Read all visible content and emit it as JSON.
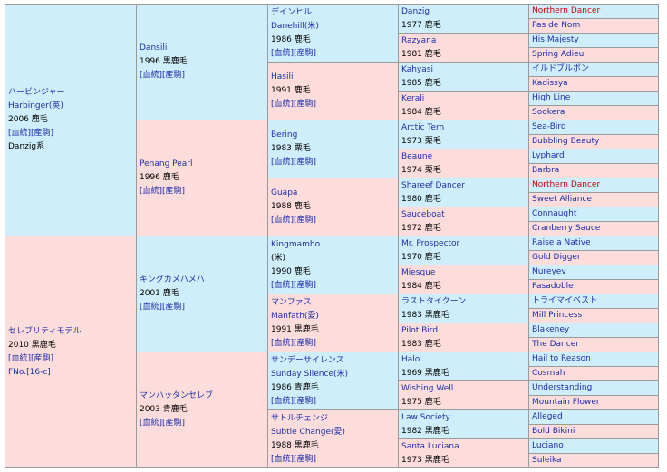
{
  "gen1": [
    {
      "lines": [
        "ハービンジャー",
        "Harbinger(英)",
        "2006 鹿毛",
        "[血統][産駒]",
        "Danzig系"
      ]
    },
    {
      "lines": [
        "セレブリティモデル",
        "2010 黒鹿毛",
        "[血統][産駒]",
        "FNo.[16-c]"
      ]
    }
  ],
  "gen2": [
    {
      "lines": [
        "Dansili",
        "1996 黒鹿毛",
        "[血統][産駒]"
      ]
    },
    {
      "lines": [
        "Penang Pearl",
        "1996 鹿毛",
        "[血統][産駒]"
      ]
    },
    {
      "lines": [
        "キングカメハメハ",
        "2001 鹿毛",
        "[血統][産駒]"
      ]
    },
    {
      "lines": [
        "マンハッタンセレブ",
        "2003 青鹿毛",
        "[血統][産駒]"
      ]
    }
  ],
  "gen3": [
    {
      "lines": [
        "デインヒル",
        "Danehill(米)",
        "1986 鹿毛",
        "[血統][産駒]"
      ]
    },
    {
      "lines": [
        "Hasili",
        "1991 鹿毛",
        "[血統][産駒]"
      ]
    },
    {
      "lines": [
        "Bering",
        "1983 栗毛",
        "[血統][産駒]"
      ]
    },
    {
      "lines": [
        "Guapa",
        "1988 鹿毛",
        "[血統][産駒]"
      ]
    },
    {
      "lines": [
        "Kingmambo",
        "(米)",
        "1990 鹿毛",
        "[血統][産駒]"
      ]
    },
    {
      "lines": [
        "マンファス",
        "Manfath(愛)",
        "1991 黒鹿毛",
        "[血統][産駒]"
      ]
    },
    {
      "lines": [
        "サンデーサイレンス",
        "Sunday Silence(米)",
        "1986 青鹿毛",
        "[血統][産駒]"
      ]
    },
    {
      "lines": [
        "サトルチェンジ",
        "Subtle Change(愛)",
        "1988 黒鹿毛",
        "[血統][産駒]"
      ]
    }
  ],
  "gen4": [
    {
      "name": "Danzig",
      "info": "1977 鹿毛"
    },
    {
      "name": "Razyana",
      "info": "1981 鹿毛"
    },
    {
      "name": "Kahyasi",
      "info": "1985 鹿毛"
    },
    {
      "name": "Kerali",
      "info": "1984 鹿毛"
    },
    {
      "name": "Arctic Tern",
      "info": "1973 栗毛"
    },
    {
      "name": "Beaune",
      "info": "1974 栗毛"
    },
    {
      "name": "Shareef Dancer",
      "info": "1980 鹿毛"
    },
    {
      "name": "Sauceboat",
      "info": "1972 鹿毛"
    },
    {
      "name": "Mr. Prospector",
      "info": "1970 鹿毛"
    },
    {
      "name": "Miesque",
      "info": "1984 鹿毛"
    },
    {
      "name": "ラストタイクーン",
      "info": "1983 黒鹿毛"
    },
    {
      "name": "Pilot Bird",
      "info": "1983 鹿毛"
    },
    {
      "name": "Halo",
      "info": "1969 黒鹿毛"
    },
    {
      "name": "Wishing Well",
      "info": "1975 鹿毛"
    },
    {
      "name": "Law Society",
      "info": "1982 黒鹿毛"
    },
    {
      "name": "Santa Luciana",
      "info": "1973 黒鹿毛"
    }
  ],
  "gen5": [
    "Northern Dancer",
    "Pas de Nom",
    "His Majesty",
    "Spring Adieu",
    "イルドブルボン",
    "Kadissya",
    "High Line",
    "Sookera",
    "Sea-Bird",
    "Bubbling Beauty",
    "Lyphard",
    "Barbra",
    "Northern Dancer",
    "Sweet Alliance",
    "Connaught",
    "Cranberry Sauce",
    "Raise a Native",
    "Gold Digger",
    "Nureyev",
    "Pasadoble",
    "トライマイベスト",
    "Mill Princess",
    "Blakeney",
    "The Dancer",
    "Hail to Reason",
    "Cosmah",
    "Understanding",
    "Mountain Flower",
    "Alleged",
    "Bold Bikini",
    "Luciano",
    "Suleika"
  ],
  "colors": {
    "sire_bg": "#cfeefb",
    "dam_bg": "#fddcdc",
    "link": "#1c2fa8",
    "inbreed_highlight": "#cc0000"
  },
  "highlighted_names": [
    "Northern Dancer"
  ]
}
